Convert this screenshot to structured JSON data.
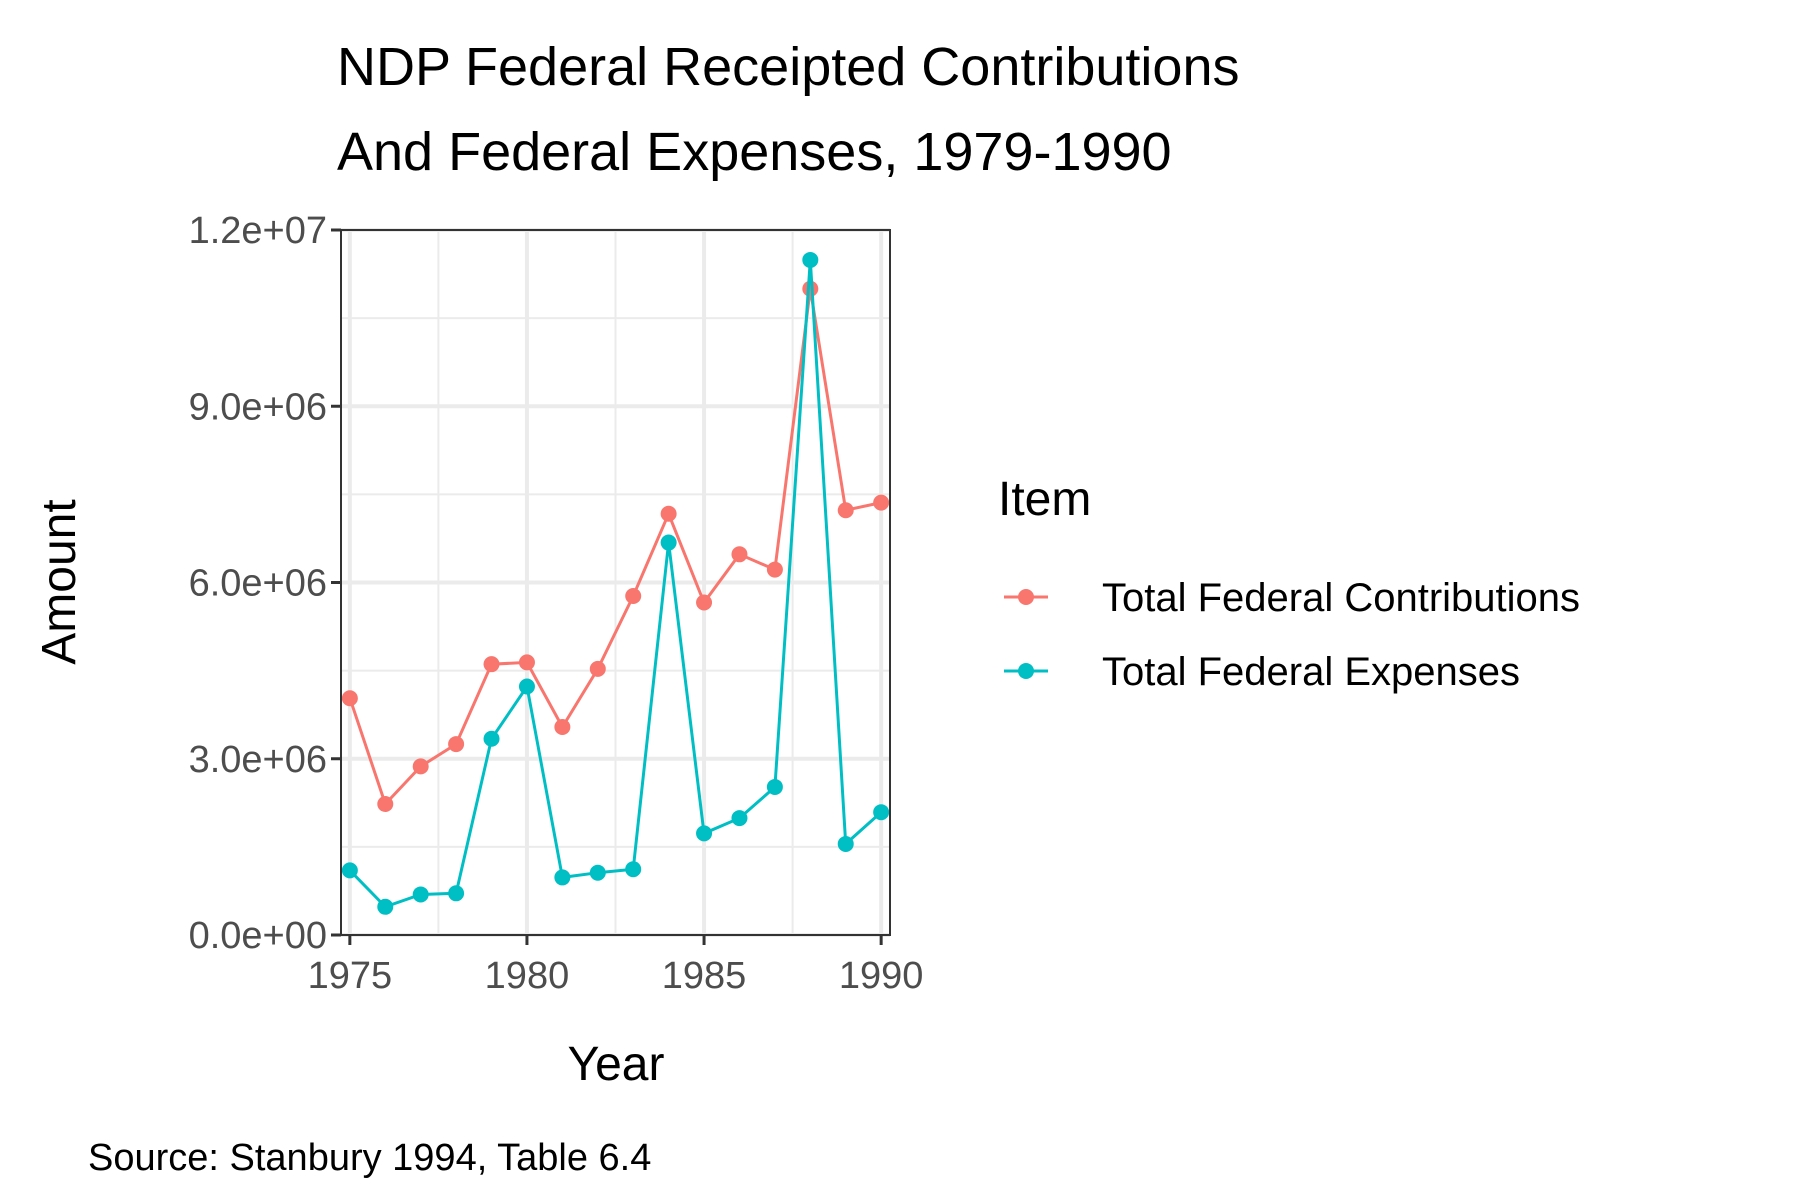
{
  "chart_data": {
    "type": "line",
    "title_lines": [
      "NDP Federal Receipted Contributions",
      "And Federal Expenses, 1979-1990"
    ],
    "xlabel": "Year",
    "ylabel": "Amount",
    "caption": "Source: Stanbury 1994, Table 6.4",
    "xlim": [
      1974.75,
      1990.25
    ],
    "ylim": [
      0,
      12000000
    ],
    "x_ticks": [
      1975,
      1980,
      1985,
      1990
    ],
    "y_ticks": [
      0,
      3000000,
      6000000,
      9000000,
      12000000
    ],
    "y_tick_labels": [
      "0.0e+00",
      "3.0e+06",
      "6.0e+06",
      "9.0e+06",
      "1.2e+07"
    ],
    "x_tick_labels": [
      "1975",
      "1980",
      "1985",
      "1990"
    ],
    "grid": true,
    "legend": {
      "title": "Item",
      "placement": "right"
    },
    "x": [
      1975,
      1976,
      1977,
      1978,
      1979,
      1980,
      1981,
      1982,
      1983,
      1984,
      1985,
      1986,
      1987,
      1988,
      1989,
      1990
    ],
    "series": [
      {
        "name": "Total Federal Contributions",
        "color": "#F8766D",
        "values": [
          4030000,
          2230000,
          2870000,
          3250000,
          4610000,
          4640000,
          3540000,
          4530000,
          5770000,
          7170000,
          5660000,
          6480000,
          6220000,
          11000000,
          7230000,
          7360000
        ]
      },
      {
        "name": "Total Federal Expenses",
        "color": "#00BFC4",
        "values": [
          1100000,
          480000,
          690000,
          710000,
          3340000,
          4230000,
          980000,
          1060000,
          1120000,
          6680000,
          1730000,
          1990000,
          2520000,
          11490000,
          1550000,
          2090000
        ]
      }
    ]
  }
}
